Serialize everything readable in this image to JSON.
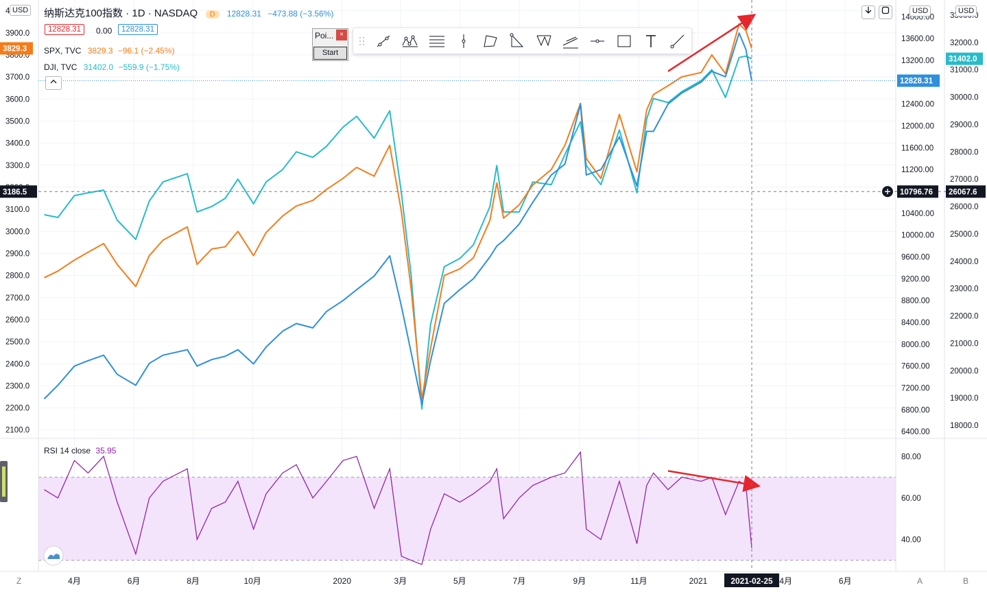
{
  "header": {
    "title": "纳斯达克100指数 · 1D · NASDAQ",
    "badge": "D",
    "price": "12828.31",
    "change": "−473.88 (−3.56%)",
    "left_usd": "USD",
    "mid_usd": "USD",
    "right_usd": "USD",
    "box_bid": "12828.31",
    "box_spread": "0.00",
    "box_ask": "12828.31",
    "down_icon": "arrow-down-icon",
    "maximize_icon": "maximize-icon"
  },
  "legend": [
    {
      "sym": "SPX, TVC",
      "value": "3829.3",
      "change": "−96.1 (−2.45%)",
      "color": "#f57c1a"
    },
    {
      "sym": "DJI, TVC",
      "value": "31402.0",
      "change": "−559.9 (−1.75%)",
      "color": "#26bcc9"
    }
  ],
  "popup": {
    "title": "Poi...",
    "close": "×",
    "start": "Start"
  },
  "colors": {
    "ndx": "#2e8fdc",
    "spx": "#f57c1a",
    "dji": "#26bcc9",
    "rsi": "#9227a6",
    "arrow": "#e5262c"
  },
  "crosshair": {
    "left_label": "3186.5",
    "mid_label": "10796.76",
    "right_label": "26067.6",
    "date_label": "2021-02-25"
  },
  "price_tags": {
    "spx": "3829.3",
    "ndx": "12828.31",
    "dji": "31402.0"
  },
  "rsi": {
    "label": "RSI 14 close",
    "value": "35.95"
  },
  "bottom_letters": {
    "left": "Z",
    "a": "A",
    "b": "B"
  },
  "chart_data": {
    "type": "line",
    "title": "纳斯达克100指数",
    "x": [
      "2019-03-01",
      "2019-03-15",
      "2019-04-01",
      "2019-04-15",
      "2019-05-01",
      "2019-05-15",
      "2019-06-03",
      "2019-06-17",
      "2019-07-01",
      "2019-07-26",
      "2019-08-05",
      "2019-08-20",
      "2019-09-03",
      "2019-09-16",
      "2019-10-02",
      "2019-10-15",
      "2019-11-01",
      "2019-11-15",
      "2019-12-02",
      "2019-12-16",
      "2020-01-02",
      "2020-01-16",
      "2020-02-03",
      "2020-02-19",
      "2020-03-02",
      "2020-03-12",
      "2020-03-23",
      "2020-04-01",
      "2020-04-15",
      "2020-05-01",
      "2020-05-15",
      "2020-06-01",
      "2020-06-08",
      "2020-06-15",
      "2020-07-01",
      "2020-07-15",
      "2020-08-03",
      "2020-08-17",
      "2020-09-02",
      "2020-09-08",
      "2020-09-23",
      "2020-10-12",
      "2020-10-30",
      "2020-11-09",
      "2020-11-16",
      "2020-12-01",
      "2020-12-15",
      "2021-01-04",
      "2021-01-15",
      "2021-01-29",
      "2021-02-12",
      "2021-02-19",
      "2021-02-25"
    ],
    "series": [
      {
        "name": "纳斯达克100指数",
        "axis": "NASDAQ",
        "values": [
          7000,
          7250,
          7600,
          7700,
          7800,
          7450,
          7250,
          7650,
          7800,
          7900,
          7600,
          7720,
          7780,
          7900,
          7640,
          7950,
          8240,
          8380,
          8300,
          8600,
          8800,
          9000,
          9250,
          9620,
          8700,
          7850,
          6900,
          7700,
          8750,
          9000,
          9200,
          9600,
          9800,
          9900,
          10200,
          10600,
          11100,
          11300,
          12400,
          11100,
          11200,
          11800,
          10900,
          11900,
          11900,
          12400,
          12600,
          12800,
          13000,
          12900,
          13700,
          13400,
          12828
        ]
      },
      {
        "name": "SPX, TVC",
        "axis": "SPX",
        "values": [
          2790,
          2820,
          2870,
          2905,
          2945,
          2850,
          2750,
          2890,
          2960,
          3020,
          2850,
          2920,
          2930,
          3000,
          2890,
          2995,
          3070,
          3115,
          3140,
          3190,
          3240,
          3290,
          3250,
          3390,
          3090,
          2740,
          2240,
          2470,
          2800,
          2830,
          2880,
          3050,
          3220,
          3060,
          3120,
          3210,
          3280,
          3390,
          3580,
          3330,
          3240,
          3530,
          3270,
          3550,
          3620,
          3660,
          3700,
          3720,
          3800,
          3715,
          3940,
          3910,
          3829.3
        ]
      },
      {
        "name": "DJI, TVC",
        "axis": "DJI",
        "values": [
          25700,
          25600,
          26400,
          26500,
          26600,
          25500,
          24800,
          26200,
          26900,
          27200,
          25800,
          26000,
          26300,
          27000,
          26100,
          26900,
          27350,
          28000,
          27800,
          28200,
          28900,
          29300,
          28500,
          29500,
          26500,
          23500,
          18600,
          21700,
          23800,
          24100,
          24600,
          26000,
          27500,
          25800,
          25800,
          26900,
          26800,
          27900,
          29100,
          27500,
          26800,
          28800,
          26500,
          29200,
          29950,
          29800,
          30200,
          30600,
          31000,
          29990,
          31450,
          31500,
          31402
        ]
      }
    ],
    "axes": {
      "left": {
        "label": "SPX",
        "ticks": [
          2100,
          2200,
          2300,
          2400,
          2500,
          2600,
          2700,
          2800,
          2900,
          3000,
          3100,
          3200,
          3300,
          3400,
          3500,
          3600,
          3700,
          3800,
          3900,
          4000
        ],
        "ylim": [
          2065,
          4030
        ]
      },
      "middle": {
        "label": "NASDAQ",
        "ticks": [
          6400,
          6800,
          7200,
          7600,
          8000,
          8400,
          8800,
          9200,
          9600,
          10000,
          10400,
          10800,
          11200,
          11600,
          12000,
          12400,
          12800,
          13200,
          13600,
          14000
        ],
        "ylim": [
          6290,
          14230
        ]
      },
      "right": {
        "label": "DJI",
        "ticks": [
          18000,
          19000,
          20000,
          21000,
          22000,
          23000,
          24000,
          25000,
          26000,
          27000,
          28000,
          29000,
          30000,
          31000,
          32000,
          33000
        ],
        "ylim": [
          17550,
          33400
        ]
      }
    },
    "x_tick_labels": [
      "4月",
      "6月",
      "8月",
      "10月",
      "2020",
      "3月",
      "5月",
      "7月",
      "9月",
      "11月",
      "2021",
      "4月",
      "6月"
    ],
    "x_tick_dates": [
      "2019-04-01",
      "2019-06-01",
      "2019-08-01",
      "2019-10-01",
      "2020-01-01",
      "2020-03-01",
      "2020-05-01",
      "2020-07-01",
      "2020-09-01",
      "2020-11-01",
      "2021-01-01",
      "2021-04-01",
      "2021-06-01"
    ],
    "x_range": [
      "2019-02-23",
      "2021-07-23"
    ],
    "rsi": {
      "name": "RSI 14 close",
      "ticks": [
        40,
        60,
        80
      ],
      "band": [
        30,
        70
      ],
      "ylim": [
        25,
        88
      ],
      "x": [
        "2019-03-01",
        "2019-03-15",
        "2019-04-01",
        "2019-04-15",
        "2019-05-01",
        "2019-05-15",
        "2019-06-03",
        "2019-06-17",
        "2019-07-01",
        "2019-07-26",
        "2019-08-05",
        "2019-08-20",
        "2019-09-03",
        "2019-09-16",
        "2019-10-02",
        "2019-10-15",
        "2019-11-01",
        "2019-11-15",
        "2019-12-02",
        "2019-12-16",
        "2020-01-02",
        "2020-01-16",
        "2020-02-03",
        "2020-02-19",
        "2020-03-02",
        "2020-03-12",
        "2020-03-23",
        "2020-04-01",
        "2020-04-15",
        "2020-05-01",
        "2020-05-15",
        "2020-06-01",
        "2020-06-08",
        "2020-06-15",
        "2020-07-01",
        "2020-07-15",
        "2020-08-03",
        "2020-08-17",
        "2020-09-02",
        "2020-09-08",
        "2020-09-23",
        "2020-10-12",
        "2020-10-30",
        "2020-11-09",
        "2020-11-16",
        "2020-12-01",
        "2020-12-15",
        "2021-01-04",
        "2021-01-15",
        "2021-01-29",
        "2021-02-12",
        "2021-02-19",
        "2021-02-25"
      ],
      "values": [
        64,
        60,
        78,
        72,
        80,
        58,
        33,
        60,
        68,
        74,
        40,
        55,
        58,
        68,
        45,
        62,
        72,
        76,
        60,
        68,
        78,
        80,
        55,
        74,
        32,
        30,
        28,
        45,
        62,
        58,
        62,
        68,
        74,
        50,
        60,
        66,
        70,
        72,
        82,
        45,
        40,
        68,
        38,
        66,
        72,
        64,
        70,
        68,
        70,
        52,
        68,
        66,
        35.95
      ]
    },
    "annotations": [
      {
        "type": "arrow",
        "pane": "price",
        "from": [
          "2020-12-01",
          13000
        ],
        "to": [
          "2021-02-25",
          14000
        ],
        "color": "#e5262c"
      },
      {
        "type": "arrow",
        "pane": "rsi",
        "from": [
          "2020-12-01",
          73
        ],
        "to": [
          "2021-03-01",
          66
        ],
        "color": "#e5262c"
      }
    ]
  }
}
